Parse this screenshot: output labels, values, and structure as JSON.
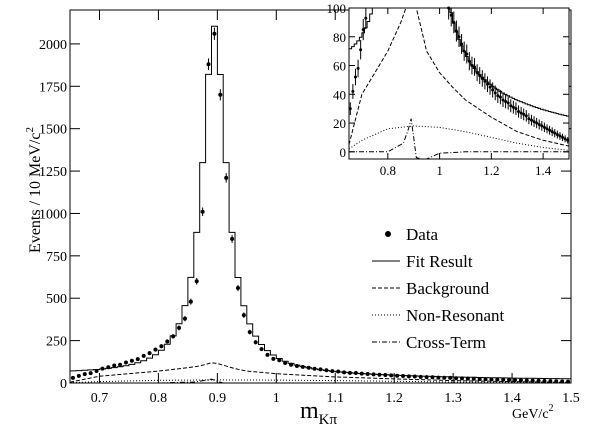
{
  "chart_data": [
    {
      "type": "line",
      "xlim": [
        0.65,
        1.5
      ],
      "ylim": [
        0,
        2200
      ],
      "x_ticks": [
        0.7,
        0.8,
        0.9,
        1.0,
        1.1,
        1.2,
        1.3,
        1.4,
        1.5
      ],
      "x_tick_labels": [
        "0.7",
        "0.8",
        "0.9",
        "1",
        "1.1",
        "1.2",
        "1.3",
        "1.4",
        "1.5"
      ],
      "y_ticks": [
        0,
        250,
        500,
        750,
        1000,
        1250,
        1500,
        1750,
        2000
      ],
      "y_tick_labels": [
        "0",
        "250",
        "500",
        "750",
        "1000",
        "1250",
        "1500",
        "1750",
        "2000"
      ],
      "ylabel": "Events / 10 MeV/c",
      "ylabel_sup": "2",
      "xlabel_main": "m",
      "xlabel_sub": "Kπ",
      "xunit": "GeV/c",
      "xunit_sup": "2",
      "legend_position": "right",
      "legend": [
        {
          "key": "data",
          "label": "Data",
          "style": "dot"
        },
        {
          "key": "fit",
          "label": "Fit Result",
          "style": "solid"
        },
        {
          "key": "background",
          "label": "Background",
          "style": "dashed"
        },
        {
          "key": "nonres",
          "label": "Non-Resonant",
          "style": "dotted"
        },
        {
          "key": "cross",
          "label": "Cross-Term",
          "style": "dashdot"
        }
      ],
      "fit_shape": {
        "peak_x": 0.895,
        "peak_y": 2060,
        "gamma": 0.05,
        "tail_amp": 50,
        "tail_slope": 1.2
      },
      "series": [
        {
          "name": "Data",
          "x": [
            0.655,
            0.665,
            0.675,
            0.685,
            0.695,
            0.705,
            0.715,
            0.725,
            0.735,
            0.745,
            0.755,
            0.765,
            0.775,
            0.785,
            0.795,
            0.805,
            0.815,
            0.825,
            0.835,
            0.845,
            0.855,
            0.865,
            0.875,
            0.885,
            0.895,
            0.905,
            0.915,
            0.925,
            0.935,
            0.945,
            0.955,
            0.965,
            0.975,
            0.985,
            0.995,
            1.005,
            1.015,
            1.025,
            1.035,
            1.045,
            1.055,
            1.065,
            1.075,
            1.085,
            1.095,
            1.105,
            1.115,
            1.125,
            1.135,
            1.145,
            1.155,
            1.165,
            1.175,
            1.185,
            1.195,
            1.205,
            1.215,
            1.225,
            1.235,
            1.245,
            1.255,
            1.265,
            1.275,
            1.285,
            1.295,
            1.305,
            1.315,
            1.325,
            1.335,
            1.345,
            1.355,
            1.365,
            1.375,
            1.385,
            1.395,
            1.405,
            1.415,
            1.425,
            1.435,
            1.445,
            1.455,
            1.465,
            1.475,
            1.485,
            1.495
          ],
          "y": [
            30,
            42,
            52,
            58,
            71,
            85,
            93,
            103,
            108,
            121,
            131,
            141,
            160,
            176,
            197,
            217,
            245,
            275,
            325,
            380,
            480,
            600,
            1010,
            1880,
            2060,
            1700,
            1210,
            850,
            560,
            400,
            300,
            240,
            200,
            166,
            142,
            134,
            118,
            108,
            100,
            95,
            90,
            84,
            80,
            75,
            70,
            68,
            63,
            60,
            59,
            55,
            53,
            51,
            49,
            47,
            45,
            43,
            41,
            39,
            38,
            36,
            35,
            34,
            32,
            31,
            30,
            28,
            27,
            26,
            25,
            23,
            22,
            21,
            20,
            19,
            18,
            17,
            16,
            15,
            14,
            13,
            12,
            11,
            10,
            9,
            8
          ],
          "err": 5
        },
        {
          "name": "Fit Result",
          "sampled_from": "fit_shape"
        },
        {
          "name": "Background",
          "x": [
            0.65,
            0.7,
            0.75,
            0.8,
            0.85,
            0.87,
            0.88,
            0.89,
            0.9,
            0.91,
            0.93,
            0.95,
            1.0,
            1.05,
            1.1,
            1.2,
            1.3,
            1.4,
            1.5
          ],
          "y": [
            5,
            40,
            55,
            70,
            90,
            100,
            110,
            120,
            115,
            105,
            85,
            70,
            55,
            45,
            36,
            24,
            14,
            8,
            4
          ]
        },
        {
          "name": "Non-Resonant",
          "x": [
            0.65,
            0.7,
            0.8,
            0.9,
            1.0,
            1.1,
            1.2,
            1.3,
            1.4,
            1.5
          ],
          "y": [
            2,
            8,
            16,
            18,
            17,
            14,
            10,
            6,
            3,
            1
          ]
        },
        {
          "name": "Cross-Term",
          "x": [
            0.65,
            0.8,
            0.86,
            0.88,
            0.89,
            0.9,
            0.91,
            0.93,
            0.95,
            1.0,
            1.1,
            1.2,
            1.5
          ],
          "y": [
            0,
            0,
            6,
            16,
            23,
            10,
            -4,
            -7,
            -5,
            -1,
            0,
            0,
            0
          ]
        }
      ]
    },
    {
      "type": "line",
      "inset": true,
      "xlim": [
        0.65,
        1.5
      ],
      "ylim": [
        -5,
        100
      ],
      "x_ticks": [
        0.8,
        1.0,
        1.2,
        1.4
      ],
      "x_tick_labels": [
        "0.8",
        "1",
        "1.2",
        "1.4"
      ],
      "y_ticks": [
        0,
        20,
        40,
        60,
        80,
        100
      ],
      "y_tick_labels": [
        "0",
        "20",
        "40",
        "60",
        "80",
        "100"
      ]
    }
  ]
}
